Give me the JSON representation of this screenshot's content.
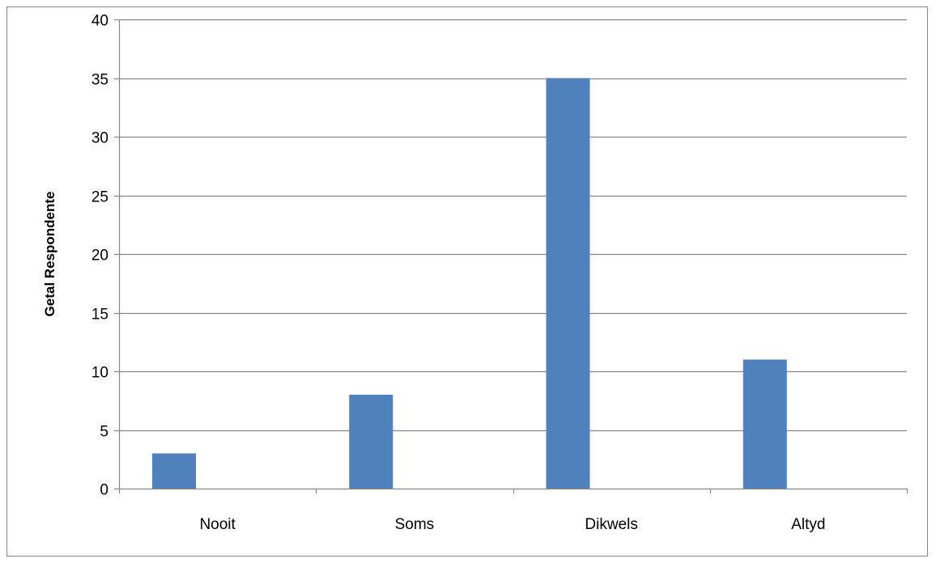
{
  "chart_data": {
    "type": "bar",
    "title": "",
    "xlabel": "",
    "ylabel": "Getal Respondente",
    "categories": [
      "Nooit",
      "Soms",
      "Dikwels",
      "Altyd"
    ],
    "values": [
      3,
      8,
      35,
      11
    ],
    "ylim": [
      0,
      40
    ],
    "yticks": [
      0,
      5,
      10,
      15,
      20,
      25,
      30,
      35,
      40
    ],
    "grid": true,
    "legend": "none",
    "colors": {
      "bar": "#4f81bd",
      "grid": "#868686",
      "axis": "#868686",
      "border": "#868686"
    }
  }
}
